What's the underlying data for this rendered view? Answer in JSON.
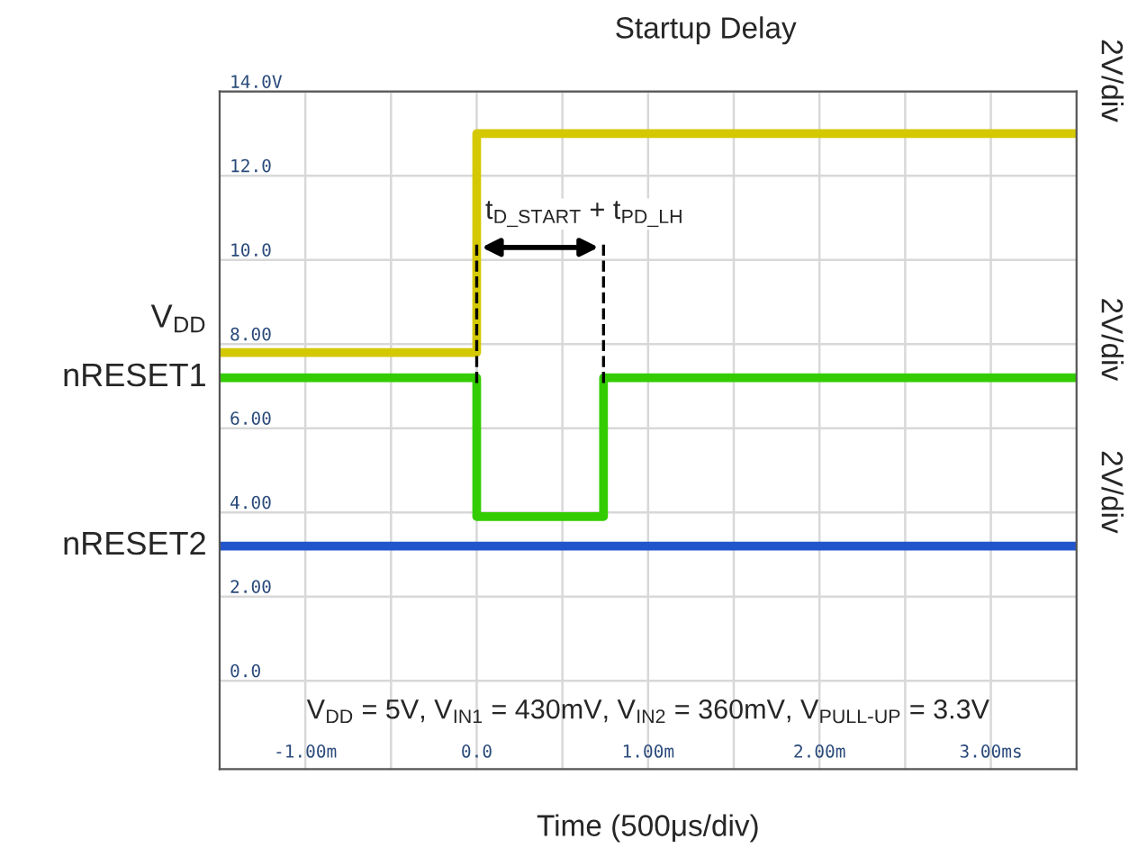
{
  "chart_data": {
    "type": "line",
    "title": "Startup Delay",
    "xlabel": "Time (500μs/div)",
    "xlim": [
      -1.5,
      3.5
    ],
    "ylim": [
      -2.1,
      14.0
    ],
    "xticks": [
      {
        "value": -1.0,
        "label": "-1.00m"
      },
      {
        "value": -0.5,
        "label": null
      },
      {
        "value": 0,
        "label": "0.0"
      },
      {
        "value": 0.5,
        "label": null
      },
      {
        "value": 1.0,
        "label": "1.00m"
      },
      {
        "value": 1.5,
        "label": null
      },
      {
        "value": 2.0,
        "label": "2.00m"
      },
      {
        "value": 2.5,
        "label": null
      },
      {
        "value": 3.0,
        "label": "3.00ms"
      }
    ],
    "yticks": [
      {
        "value": 0,
        "label": "0.0"
      },
      {
        "value": 2,
        "label": "2.00"
      },
      {
        "value": 4,
        "label": "4.00"
      },
      {
        "value": 6,
        "label": "6.00"
      },
      {
        "value": 8,
        "label": "8.00"
      },
      {
        "value": 10,
        "label": "10.0"
      },
      {
        "value": 12,
        "label": "12.0"
      },
      {
        "value": 14,
        "label": "14.0V"
      }
    ],
    "grid": true,
    "legend": false,
    "series": [
      {
        "name": "V$_{DD}$",
        "color": "#d4c800",
        "x": [
          -1.5,
          0,
          0,
          3.5
        ],
        "values": [
          7.8,
          7.8,
          13.0,
          13.0
        ]
      },
      {
        "name": "nRESET1",
        "color": "#33cc00",
        "x": [
          -1.5,
          0,
          0,
          0.74,
          0.74,
          3.5
        ],
        "values": [
          7.2,
          7.2,
          3.9,
          3.9,
          7.2,
          7.2
        ]
      },
      {
        "name": "nRESET2",
        "color": "#2255cc",
        "x": [
          -1.5,
          3.5
        ],
        "values": [
          3.2,
          3.2
        ]
      }
    ],
    "ref_lines": [
      {
        "axis": "x",
        "value": 0,
        "color": "#000000",
        "line_style": "dashed"
      },
      {
        "axis": "x",
        "value": 0.74,
        "color": "#000000",
        "line_style": "dashed"
      }
    ],
    "annotations": [
      "t$_{D_START}$ + t$_{PD_LH}$",
      "2V/div",
      "2V/div",
      "2V/div",
      "V$_{DD}$ = 5V, V$_{IN1}$ = 430mV, V$_{IN2}$ = 360mV, V$_{PULL-UP}$ = 3.3V"
    ]
  }
}
